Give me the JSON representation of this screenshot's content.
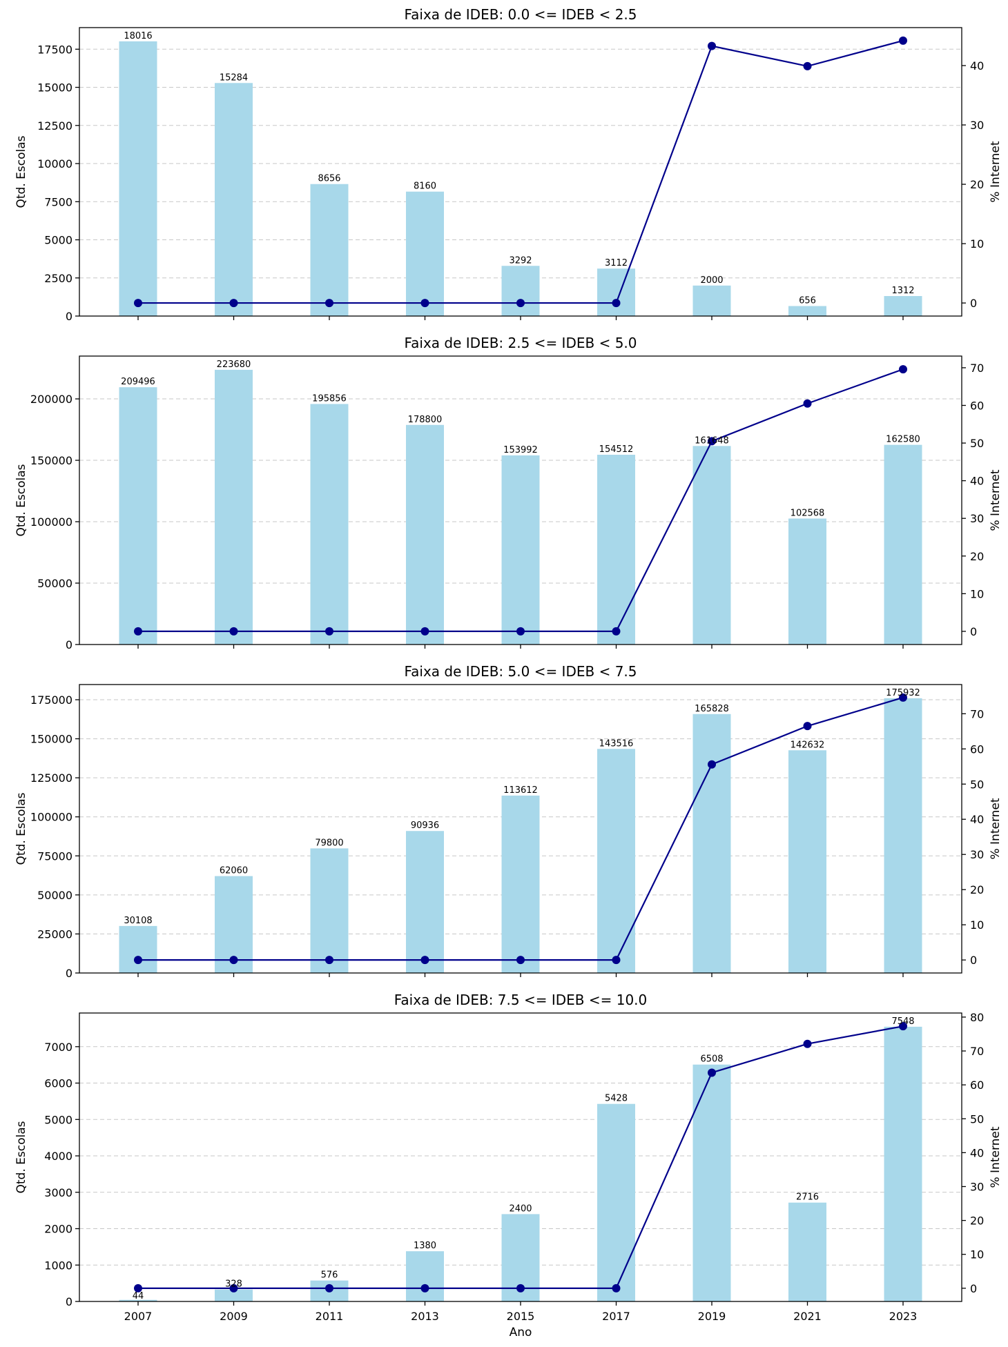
{
  "chart_data": [
    {
      "type": "bar",
      "title": "Faixa de IDEB: 0.0 <= IDEB < 2.5",
      "xlabel": "",
      "ylabel": "Qtd. Escolas",
      "y2label": "% Internet",
      "categories": [
        "2007",
        "2009",
        "2011",
        "2013",
        "2015",
        "2017",
        "2019",
        "2021",
        "2023"
      ],
      "series": [
        {
          "values": [
            18016,
            15284,
            8656,
            8160,
            3292,
            3112,
            2000,
            656,
            1312
          ],
          "color": "#a8d8ea",
          "axis": "left"
        },
        {
          "values": [
            0,
            0,
            0,
            0,
            0,
            0,
            43.3,
            39.9,
            44.2
          ],
          "color": "#00008b",
          "axis": "right",
          "kind": "line"
        }
      ],
      "data_labels": [
        "18016",
        "15284",
        "8656",
        "8160",
        "3292",
        "3112",
        "2000",
        "656",
        "1312"
      ],
      "ylim": [
        0,
        18917
      ],
      "y2lim": [
        -2.2,
        46.4
      ],
      "yticks": [
        "0",
        "2500",
        "5000",
        "7500",
        "10000",
        "12500",
        "15000",
        "17500"
      ],
      "y2ticks": [
        "0",
        "10",
        "20",
        "30",
        "40"
      ],
      "grid": true
    },
    {
      "type": "bar",
      "title": "Faixa de IDEB: 2.5 <= IDEB < 5.0",
      "xlabel": "",
      "ylabel": "Qtd. Escolas",
      "y2label": "% Internet",
      "categories": [
        "2007",
        "2009",
        "2011",
        "2013",
        "2015",
        "2017",
        "2019",
        "2021",
        "2023"
      ],
      "series": [
        {
          "values": [
            209496,
            223680,
            195856,
            178800,
            153992,
            154512,
            161648,
            102568,
            162580
          ],
          "color": "#a8d8ea",
          "axis": "left"
        },
        {
          "values": [
            0,
            0,
            0,
            0,
            0,
            0,
            50.5,
            60.5,
            69.6
          ],
          "color": "#00008b",
          "axis": "right",
          "kind": "line"
        }
      ],
      "data_labels": [
        "209496",
        "223680",
        "195856",
        "178800",
        "153992",
        "154512",
        "161648",
        "102568",
        "162580"
      ],
      "ylim": [
        0,
        234864
      ],
      "y2lim": [
        -3.5,
        73.1
      ],
      "yticks": [
        "0",
        "50000",
        "100000",
        "150000",
        "200000"
      ],
      "y2ticks": [
        "0",
        "10",
        "20",
        "30",
        "40",
        "50",
        "60",
        "70"
      ],
      "grid": true
    },
    {
      "type": "bar",
      "title": "Faixa de IDEB: 5.0 <= IDEB < 7.5",
      "xlabel": "",
      "ylabel": "Qtd. Escolas",
      "y2label": "% Internet",
      "categories": [
        "2007",
        "2009",
        "2011",
        "2013",
        "2015",
        "2017",
        "2019",
        "2021",
        "2023"
      ],
      "series": [
        {
          "values": [
            30108,
            62060,
            79800,
            90936,
            113612,
            143516,
            165828,
            142632,
            175932
          ],
          "color": "#a8d8ea",
          "axis": "left"
        },
        {
          "values": [
            0,
            0,
            0,
            0,
            0,
            0,
            55.6,
            66.5,
            74.6
          ],
          "color": "#00008b",
          "axis": "right",
          "kind": "line"
        }
      ],
      "data_labels": [
        "30108",
        "62060",
        "79800",
        "90936",
        "113612",
        "143516",
        "165828",
        "142632",
        "175932"
      ],
      "ylim": [
        0,
        184729
      ],
      "y2lim": [
        -3.7,
        78.3
      ],
      "yticks": [
        "0",
        "25000",
        "50000",
        "75000",
        "100000",
        "125000",
        "150000",
        "175000"
      ],
      "y2ticks": [
        "0",
        "10",
        "20",
        "30",
        "40",
        "50",
        "60",
        "70"
      ],
      "grid": true
    },
    {
      "type": "bar",
      "title": "Faixa de IDEB: 7.5 <= IDEB <= 10.0",
      "xlabel": "Ano",
      "ylabel": "Qtd. Escolas",
      "y2label": "% Internet",
      "categories": [
        "2007",
        "2009",
        "2011",
        "2013",
        "2015",
        "2017",
        "2019",
        "2021",
        "2023"
      ],
      "series": [
        {
          "values": [
            44,
            328,
            576,
            1380,
            2400,
            5428,
            6508,
            2716,
            7548
          ],
          "color": "#a8d8ea",
          "axis": "left"
        },
        {
          "values": [
            0,
            0,
            0,
            0,
            0,
            0,
            63.6,
            72.1,
            77.3
          ],
          "color": "#00008b",
          "axis": "right",
          "kind": "line"
        }
      ],
      "data_labels": [
        "44",
        "328",
        "576",
        "1380",
        "2400",
        "5428",
        "6508",
        "2716",
        "7548"
      ],
      "ylim": [
        0,
        7925
      ],
      "y2lim": [
        -3.9,
        81.2
      ],
      "yticks": [
        "0",
        "1000",
        "2000",
        "3000",
        "4000",
        "5000",
        "6000",
        "7000"
      ],
      "y2ticks": [
        "0",
        "10",
        "20",
        "30",
        "40",
        "50",
        "60",
        "70",
        "80"
      ],
      "grid": true
    }
  ]
}
